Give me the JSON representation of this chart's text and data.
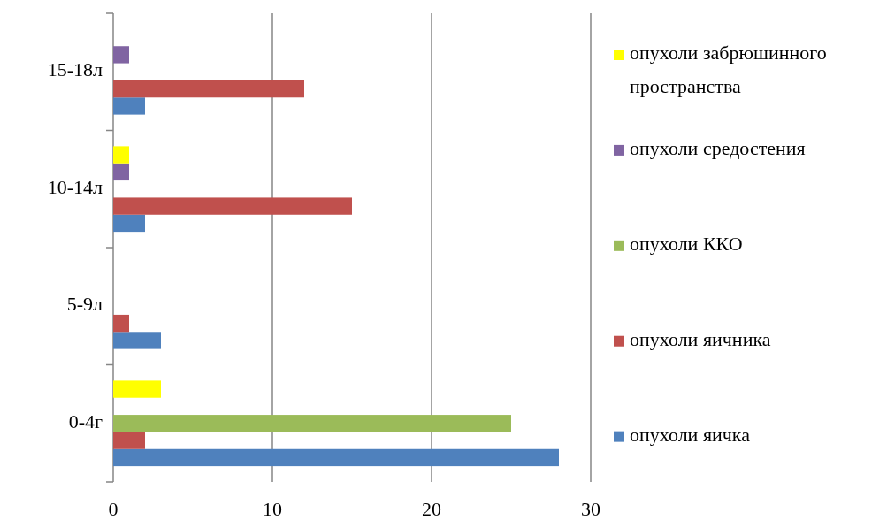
{
  "chart_data": {
    "type": "bar",
    "orientation": "horizontal",
    "categories": [
      "15-18л",
      "10-14л",
      "5-9л",
      "0-4г"
    ],
    "series": [
      {
        "name": "опухоли яичка",
        "color": "#4f81bd",
        "values": [
          2,
          2,
          3,
          28
        ]
      },
      {
        "name": "опухоли яичника",
        "color": "#c0504d",
        "values": [
          12,
          15,
          1,
          2
        ]
      },
      {
        "name": "опухоли ККО",
        "color": "#9bbb59",
        "values": [
          null,
          null,
          null,
          25
        ]
      },
      {
        "name": "опухоли средостения",
        "color": "#8064a2",
        "values": [
          1,
          1,
          null,
          null
        ]
      },
      {
        "name": "опухоли забрюшинного пространства",
        "color": "#ffff00",
        "values": [
          null,
          1,
          null,
          3
        ]
      }
    ],
    "xlim": [
      0,
      30
    ],
    "xticks": [
      0,
      10,
      20,
      30
    ],
    "grid": "x",
    "legend": "right"
  }
}
